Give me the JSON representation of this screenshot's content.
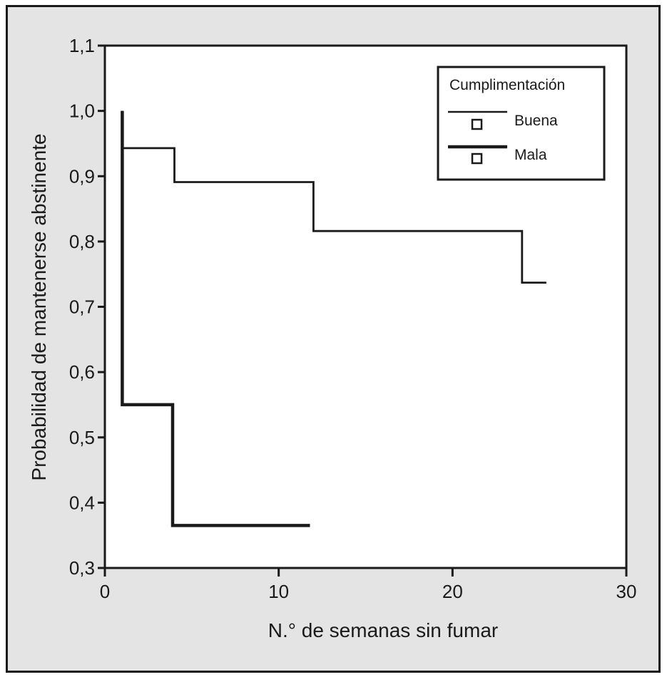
{
  "chart_data": {
    "type": "line",
    "step": true,
    "xlabel": "N.° de semanas sin fumar",
    "ylabel": "Probabilidad de mantenerse abstinente",
    "xlim": [
      0,
      30
    ],
    "ylim": [
      0.3,
      1.1
    ],
    "x_ticks": [
      0,
      10,
      20,
      30
    ],
    "x_tick_labels": [
      "0",
      "10",
      "20",
      "30"
    ],
    "y_ticks": [
      0.3,
      0.4,
      0.5,
      0.6,
      0.7,
      0.8,
      0.9,
      1.0,
      1.1
    ],
    "y_tick_labels": [
      "0,3",
      "0,4",
      "0,5",
      "0,6",
      "0,7",
      "0,8",
      "0,9",
      "1,0",
      "1,1"
    ],
    "grid": false,
    "legend": {
      "title": "Cumplimentación",
      "placement": "top-right"
    },
    "series": [
      {
        "name": "Buena",
        "line_style": "thin",
        "color": "#1a1a1a",
        "points": [
          {
            "x": 1,
            "y": 1.0
          },
          {
            "x": 1,
            "y": 0.943
          },
          {
            "x": 4,
            "y": 0.943
          },
          {
            "x": 4,
            "y": 0.891
          },
          {
            "x": 12,
            "y": 0.891
          },
          {
            "x": 12,
            "y": 0.816
          },
          {
            "x": 24,
            "y": 0.816
          },
          {
            "x": 24,
            "y": 0.737
          },
          {
            "x": 25.4,
            "y": 0.737
          }
        ]
      },
      {
        "name": "Mala",
        "line_style": "thick",
        "color": "#1a1a1a",
        "points": [
          {
            "x": 1,
            "y": 1.0
          },
          {
            "x": 1,
            "y": 0.55
          },
          {
            "x": 3.9,
            "y": 0.55
          },
          {
            "x": 3.9,
            "y": 0.365
          },
          {
            "x": 11.8,
            "y": 0.365
          }
        ]
      }
    ]
  }
}
